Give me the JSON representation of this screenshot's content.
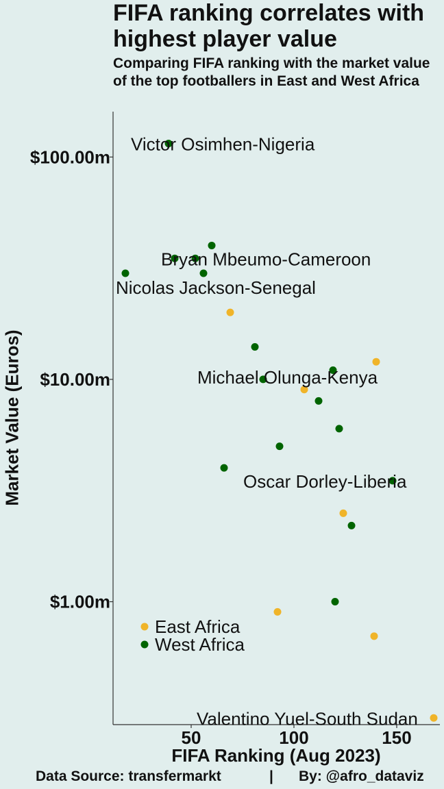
{
  "title": "FIFA ranking correlates with highest player value",
  "subtitle": "Comparing FIFA ranking with the market value of the top footballers in East and West Africa",
  "footer": {
    "source": "Data Source: transfermarkt",
    "separator": "|",
    "credit": "By: @afro_dataviz"
  },
  "colors": {
    "background": "#e1eeed",
    "east": "#f0b429",
    "west": "#006400",
    "axis": "#333333"
  },
  "chart_data": {
    "type": "scatter",
    "xlabel": "FIFA Ranking (Aug 2023)",
    "ylabel": "Market Value (Euros)",
    "y_scale": "log",
    "xlim": [
      12,
      171
    ],
    "ylim": [
      0.28,
      160
    ],
    "x_ticks": [
      50,
      100,
      150
    ],
    "x_tick_labels": [
      "50",
      "100",
      "150"
    ],
    "y_ticks": [
      1,
      10,
      100
    ],
    "y_tick_labels": [
      "$1.00m",
      "$10.00m",
      "$100.00m"
    ],
    "grid": false,
    "legend_placement": "bottom-left",
    "series": [
      {
        "name": "East Africa",
        "color": "#f0b429",
        "points": [
          {
            "x": 69,
            "y": 20
          },
          {
            "x": 105,
            "y": 9
          },
          {
            "x": 140,
            "y": 12
          },
          {
            "x": 124,
            "y": 2.5
          },
          {
            "x": 92,
            "y": 0.9
          },
          {
            "x": 139,
            "y": 0.7
          },
          {
            "x": 168,
            "y": 0.3
          }
        ]
      },
      {
        "name": "West Africa",
        "color": "#006400",
        "points": [
          {
            "x": 39,
            "y": 115
          },
          {
            "x": 60,
            "y": 40
          },
          {
            "x": 42,
            "y": 35
          },
          {
            "x": 52,
            "y": 35
          },
          {
            "x": 18,
            "y": 30
          },
          {
            "x": 56,
            "y": 30
          },
          {
            "x": 81,
            "y": 14
          },
          {
            "x": 119,
            "y": 11
          },
          {
            "x": 85,
            "y": 10
          },
          {
            "x": 112,
            "y": 8
          },
          {
            "x": 122,
            "y": 6
          },
          {
            "x": 93,
            "y": 5
          },
          {
            "x": 66,
            "y": 4
          },
          {
            "x": 148,
            "y": 3.5
          },
          {
            "x": 128,
            "y": 2.2
          },
          {
            "x": 120,
            "y": 1.0
          }
        ]
      }
    ],
    "annotations": [
      {
        "text": "Victor Osimhen-Nigeria",
        "x": 39,
        "y": 115
      },
      {
        "text": "Bryan Mbeumo-Cameroon",
        "x": 52,
        "y": 35
      },
      {
        "text": "Nicolas Jackson-Senegal",
        "x": 18,
        "y": 30
      },
      {
        "text": "Michael Olunga-Kenya",
        "x": 85,
        "y": 10
      },
      {
        "text": "Oscar Dorley-Liberia",
        "x": 148,
        "y": 3.5
      },
      {
        "text": "Valentino Yuel-South Sudan",
        "x": 168,
        "y": 0.3
      }
    ]
  }
}
